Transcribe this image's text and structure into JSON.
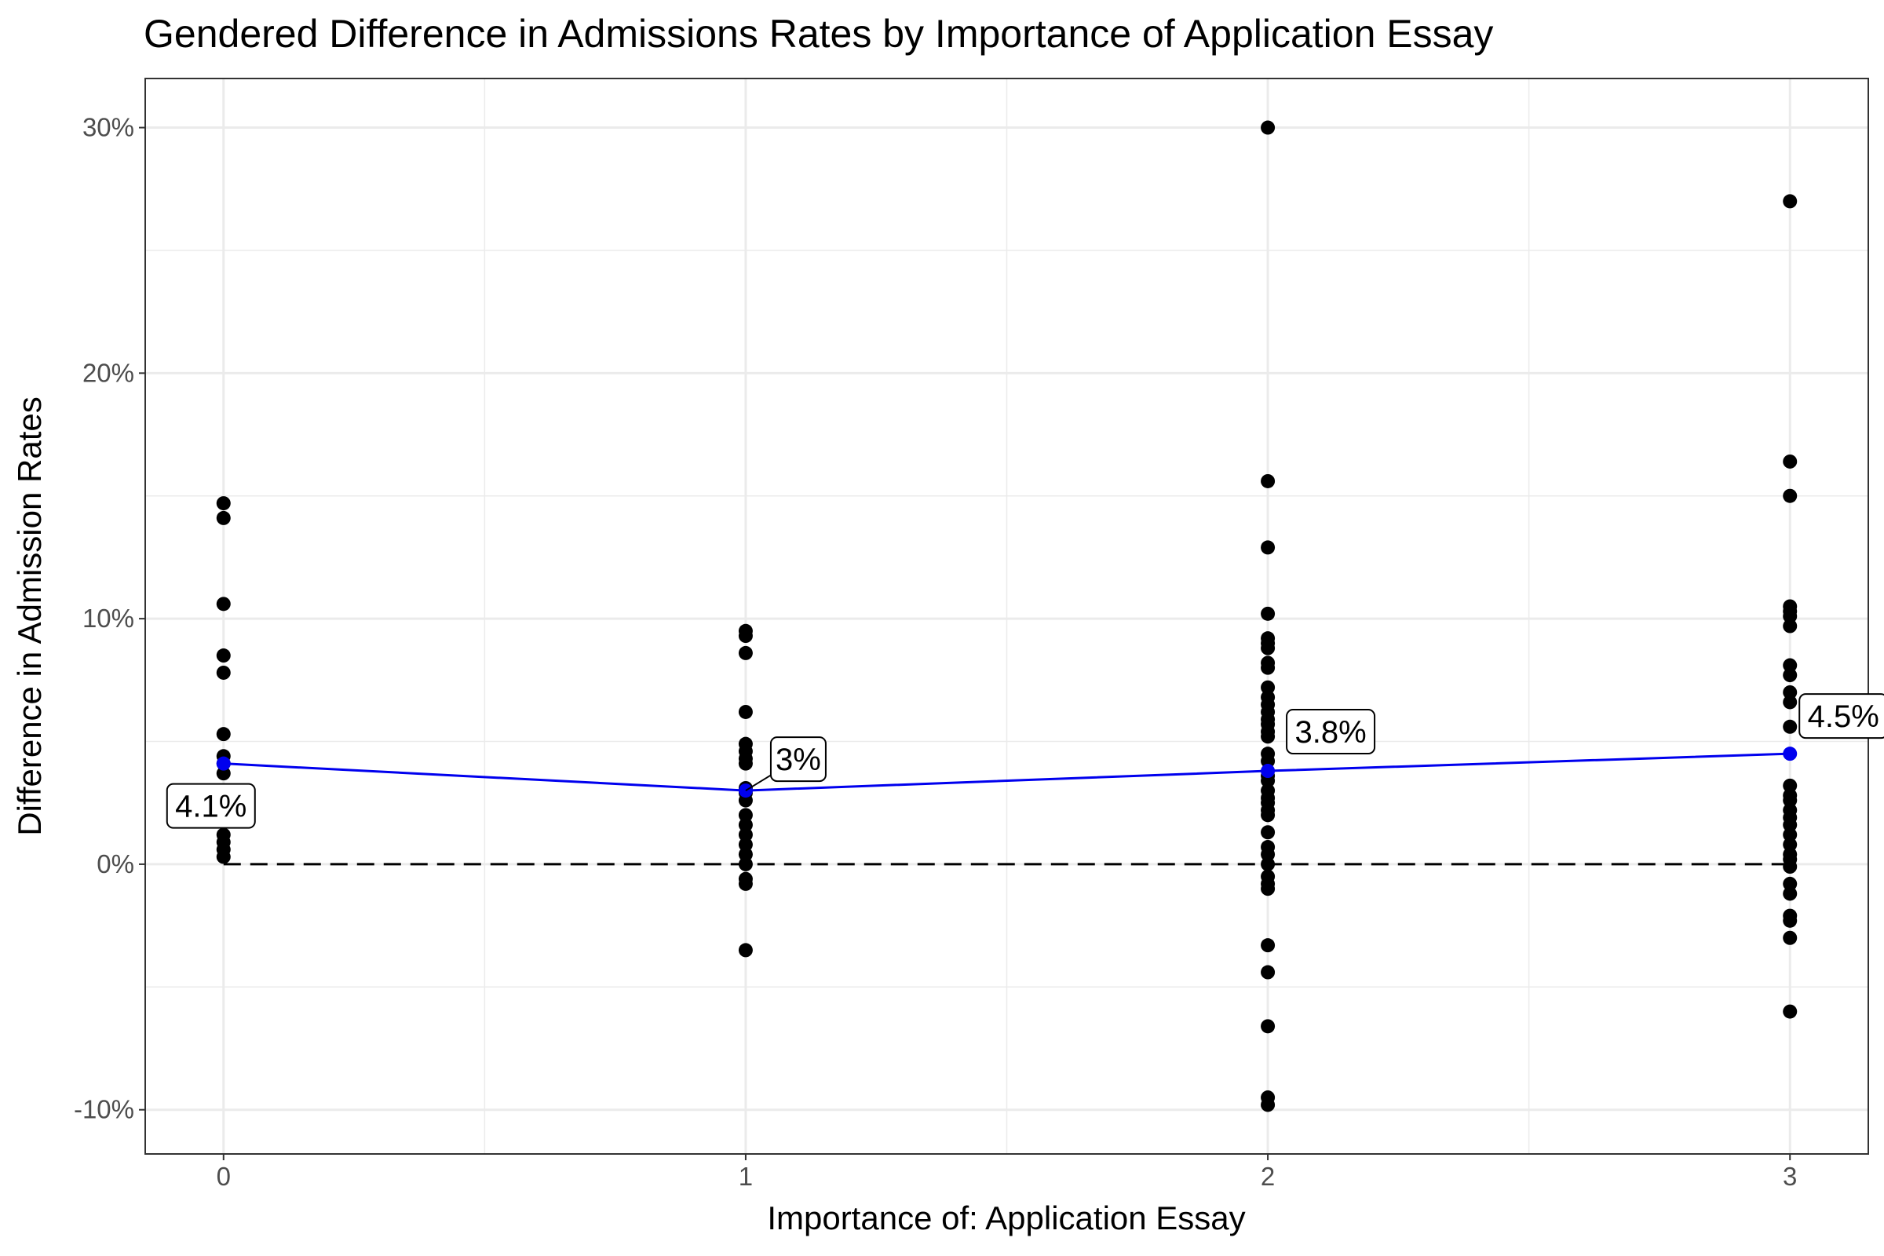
{
  "chart_data": {
    "type": "scatter",
    "title": "Gendered Difference in Admissions Rates by Importance of Application Essay",
    "xlabel": "Importance of: Application Essay",
    "ylabel": "Difference in Admission Rates",
    "x_ticks": [
      "0",
      "1",
      "2",
      "3"
    ],
    "y_ticks": [
      "-10%",
      "0%",
      "10%",
      "20%",
      "30%"
    ],
    "xlim": [
      -0.15,
      3.15
    ],
    "ylim": [
      -11.8,
      32
    ],
    "grid": true,
    "reference_line": {
      "y": 0,
      "style": "dashed"
    },
    "points": [
      {
        "x": 0,
        "ys": [
          14.7,
          14.1,
          10.6,
          8.5,
          7.8,
          5.3,
          4.4,
          4.1,
          3.7,
          2.8,
          1.2,
          0.9,
          0.6,
          0.3
        ]
      },
      {
        "x": 1,
        "ys": [
          9.5,
          9.3,
          8.6,
          6.2,
          4.9,
          4.6,
          4.3,
          4.1,
          3.1,
          2.9,
          2.6,
          2.0,
          1.6,
          1.2,
          0.8,
          0.4,
          0.0,
          -0.6,
          -0.8,
          -3.5
        ]
      },
      {
        "x": 2,
        "ys": [
          30.0,
          15.6,
          12.9,
          10.2,
          9.2,
          9.0,
          8.8,
          8.2,
          8.0,
          7.2,
          6.8,
          6.5,
          6.2,
          5.9,
          5.7,
          5.4,
          5.2,
          4.5,
          4.2,
          3.6,
          3.4,
          3.0,
          2.7,
          2.5,
          2.2,
          2.0,
          1.3,
          0.7,
          0.4,
          0.0,
          -0.5,
          -0.8,
          -1.0,
          -3.3,
          -4.4,
          -6.6,
          -9.5,
          -9.8
        ]
      },
      {
        "x": 3,
        "ys": [
          27.0,
          16.4,
          15.0,
          10.5,
          10.3,
          10.1,
          9.7,
          8.1,
          7.7,
          7.0,
          6.6,
          5.6,
          3.2,
          2.8,
          2.6,
          2.2,
          1.9,
          1.6,
          1.2,
          0.8,
          0.4,
          0.2,
          -0.1,
          -0.8,
          -1.2,
          -2.1,
          -2.3,
          -3.0,
          -6.0
        ]
      }
    ],
    "means": {
      "name": "mean",
      "color": "#0000ee",
      "x": [
        0,
        1,
        2,
        3
      ],
      "y": [
        4.1,
        3.0,
        3.8,
        4.5
      ],
      "labels": [
        "4.1%",
        "3%",
        "3.8%",
        "4.5%"
      ]
    }
  }
}
